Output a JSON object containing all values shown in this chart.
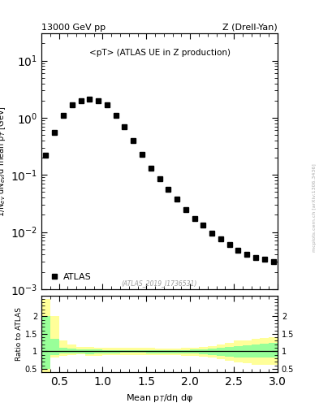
{
  "title_left": "13000 GeV pp",
  "title_right": "Z (Drell-Yan)",
  "annotation": "<pT> (ATLAS UE in Z production)",
  "ref_label": "(ATLAS_2019_I1736531)",
  "ylabel_main": "1/N$_{ev}$ dN$_{ev}$/d mean p$_{T}$ [GeV]",
  "ylabel_ratio": "Ratio to ATLAS",
  "xlabel": "Mean p$_{T}$/dη dφ",
  "watermark": "mcplots.cern.ch [arXiv:1306.3436]",
  "ylim_main": [
    0.001,
    30
  ],
  "ylim_ratio": [
    0.4,
    2.6
  ],
  "xlim": [
    0.3,
    3.0
  ],
  "data_x": [
    0.35,
    0.45,
    0.55,
    0.65,
    0.75,
    0.85,
    0.95,
    1.05,
    1.15,
    1.25,
    1.35,
    1.45,
    1.55,
    1.65,
    1.75,
    1.85,
    1.95,
    2.05,
    2.15,
    2.25,
    2.35,
    2.45,
    2.55,
    2.65,
    2.75,
    2.85,
    2.95
  ],
  "data_y": [
    0.22,
    0.55,
    1.1,
    1.7,
    2.0,
    2.1,
    2.0,
    1.7,
    1.1,
    0.7,
    0.4,
    0.23,
    0.13,
    0.085,
    0.055,
    0.038,
    0.025,
    0.017,
    0.013,
    0.0095,
    0.0075,
    0.006,
    0.0048,
    0.004,
    0.0036,
    0.0033,
    0.003
  ],
  "ratio_x_edges": [
    0.3,
    0.4,
    0.5,
    0.6,
    0.7,
    0.8,
    0.9,
    1.0,
    1.1,
    1.2,
    1.3,
    1.4,
    1.5,
    1.6,
    1.7,
    1.8,
    1.9,
    2.0,
    2.1,
    2.2,
    2.3,
    2.4,
    2.5,
    2.6,
    2.7,
    2.8,
    2.9,
    3.0
  ],
  "ratio_yellow_lo": [
    0.38,
    0.82,
    0.88,
    0.9,
    0.92,
    0.88,
    0.88,
    0.9,
    0.9,
    0.9,
    0.9,
    0.9,
    0.9,
    0.9,
    0.9,
    0.9,
    0.88,
    0.88,
    0.85,
    0.82,
    0.78,
    0.72,
    0.68,
    0.65,
    0.62,
    0.62,
    0.62
  ],
  "ratio_yellow_hi": [
    2.5,
    2.0,
    1.3,
    1.2,
    1.12,
    1.12,
    1.1,
    1.1,
    1.1,
    1.1,
    1.1,
    1.1,
    1.1,
    1.08,
    1.08,
    1.08,
    1.1,
    1.1,
    1.12,
    1.15,
    1.2,
    1.25,
    1.3,
    1.32,
    1.35,
    1.38,
    1.4
  ],
  "ratio_green_lo": [
    0.5,
    0.9,
    0.93,
    0.95,
    0.95,
    0.92,
    0.93,
    0.94,
    0.95,
    0.96,
    0.96,
    0.96,
    0.95,
    0.95,
    0.95,
    0.95,
    0.94,
    0.93,
    0.92,
    0.9,
    0.88,
    0.85,
    0.83,
    0.82,
    0.82,
    0.82,
    0.82
  ],
  "ratio_green_hi": [
    2.0,
    1.35,
    1.1,
    1.08,
    1.06,
    1.06,
    1.05,
    1.04,
    1.04,
    1.04,
    1.04,
    1.04,
    1.04,
    1.03,
    1.03,
    1.03,
    1.04,
    1.05,
    1.06,
    1.08,
    1.1,
    1.12,
    1.15,
    1.18,
    1.2,
    1.22,
    1.25
  ],
  "marker_color": "black",
  "marker_size": 4,
  "yellow_color": "#ffff99",
  "green_color": "#99ff99",
  "background_color": "white"
}
